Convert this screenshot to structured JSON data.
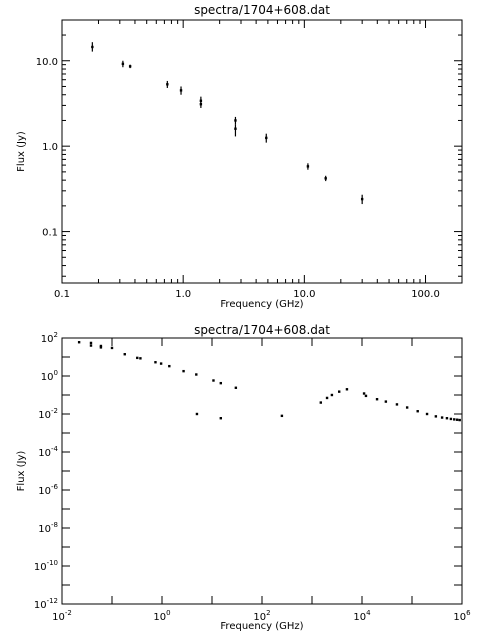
{
  "chart_data": [
    {
      "type": "scatter",
      "title": "spectra/1704+608.dat",
      "xlabel": "Frequency (GHz)",
      "ylabel": "Flux (Jy)",
      "xscale": "log",
      "yscale": "log",
      "xlim": [
        0.1,
        200
      ],
      "ylim": [
        0.025,
        30
      ],
      "x_tick_labels": [
        "0.1",
        "1.0",
        "10.0",
        "100.0"
      ],
      "y_tick_labels": [
        "0.1",
        "1.0",
        "10.0"
      ],
      "points": [
        {
          "x": 0.178,
          "y": 14.5,
          "lo": 12.8,
          "hi": 16.5
        },
        {
          "x": 0.318,
          "y": 9.2,
          "lo": 8.4,
          "hi": 10.0
        },
        {
          "x": 0.365,
          "y": 8.6,
          "lo": 8.2,
          "hi": 9.0
        },
        {
          "x": 0.74,
          "y": 5.3,
          "lo": 4.8,
          "hi": 5.8
        },
        {
          "x": 0.96,
          "y": 4.5,
          "lo": 4.0,
          "hi": 5.0
        },
        {
          "x": 1.4,
          "y": 3.4,
          "lo": 3.0,
          "hi": 3.8
        },
        {
          "x": 1.4,
          "y": 3.1,
          "lo": 2.8,
          "hi": 3.4
        },
        {
          "x": 2.7,
          "y": 2.0,
          "lo": 1.8,
          "hi": 2.2
        },
        {
          "x": 2.7,
          "y": 1.6,
          "lo": 1.3,
          "hi": 1.8
        },
        {
          "x": 4.85,
          "y": 1.25,
          "lo": 1.1,
          "hi": 1.4
        },
        {
          "x": 10.7,
          "y": 0.58,
          "lo": 0.53,
          "hi": 0.63
        },
        {
          "x": 15.0,
          "y": 0.42,
          "lo": 0.39,
          "hi": 0.45
        },
        {
          "x": 30.0,
          "y": 0.24,
          "lo": 0.21,
          "hi": 0.27
        }
      ]
    },
    {
      "type": "scatter",
      "title": "spectra/1704+608.dat",
      "xlabel": "Frequency (GHz)",
      "ylabel": "Flux (Jy)",
      "xscale": "log",
      "yscale": "log",
      "xlim": [
        0.01,
        1000000
      ],
      "ylim": [
        1e-12,
        100
      ],
      "x_tick_labels": [
        "10^-2",
        "10^0",
        "10^2",
        "10^4",
        "10^6"
      ],
      "y_tick_labels": [
        "10^2",
        "10^0",
        "10^-2",
        "10^-4",
        "10^-6",
        "10^-8",
        "10^-10",
        "10^-12"
      ],
      "points": [
        {
          "x": 0.022,
          "y": 60
        },
        {
          "x": 0.038,
          "y": 55
        },
        {
          "x": 0.038,
          "y": 40
        },
        {
          "x": 0.06,
          "y": 38
        },
        {
          "x": 0.06,
          "y": 32
        },
        {
          "x": 0.1,
          "y": 30
        },
        {
          "x": 0.18,
          "y": 14
        },
        {
          "x": 0.32,
          "y": 9
        },
        {
          "x": 0.37,
          "y": 8.5
        },
        {
          "x": 0.74,
          "y": 5.3
        },
        {
          "x": 0.96,
          "y": 4.5
        },
        {
          "x": 1.4,
          "y": 3.3
        },
        {
          "x": 2.7,
          "y": 1.8
        },
        {
          "x": 4.85,
          "y": 1.2
        },
        {
          "x": 5.0,
          "y": 0.01
        },
        {
          "x": 10.7,
          "y": 0.58
        },
        {
          "x": 15.0,
          "y": 0.42
        },
        {
          "x": 15.0,
          "y": 0.006
        },
        {
          "x": 30.0,
          "y": 0.24
        },
        {
          "x": 250,
          "y": 0.008
        },
        {
          "x": 1500,
          "y": 0.04
        },
        {
          "x": 2000,
          "y": 0.07
        },
        {
          "x": 2500,
          "y": 0.1
        },
        {
          "x": 3500,
          "y": 0.15
        },
        {
          "x": 5000,
          "y": 0.2
        },
        {
          "x": 11000,
          "y": 0.12
        },
        {
          "x": 12000,
          "y": 0.09
        },
        {
          "x": 20000,
          "y": 0.06
        },
        {
          "x": 30000,
          "y": 0.045
        },
        {
          "x": 50000,
          "y": 0.032
        },
        {
          "x": 80000,
          "y": 0.022
        },
        {
          "x": 130000,
          "y": 0.014
        },
        {
          "x": 200000,
          "y": 0.01
        },
        {
          "x": 300000,
          "y": 0.0075
        },
        {
          "x": 400000,
          "y": 0.0065
        },
        {
          "x": 500000,
          "y": 0.006
        },
        {
          "x": 600000,
          "y": 0.0055
        },
        {
          "x": 700000,
          "y": 0.0052
        },
        {
          "x": 800000,
          "y": 0.005
        },
        {
          "x": 900000,
          "y": 0.0048
        }
      ]
    }
  ]
}
